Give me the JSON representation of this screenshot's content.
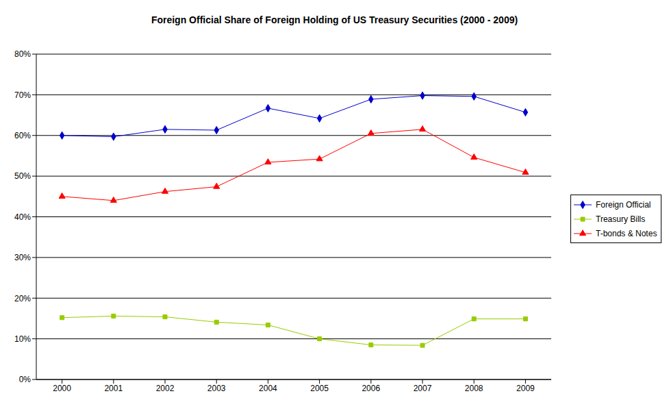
{
  "chart_data": {
    "type": "line",
    "title": "Foreign Official Share of Foreign Holding of US Treasury Securities (2000 - 2009)",
    "categories": [
      "2000",
      "2001",
      "2002",
      "2003",
      "2004",
      "2005",
      "2006",
      "2007",
      "2008",
      "2009"
    ],
    "series": [
      {
        "name": "Foreign Official",
        "color": "#0000CC",
        "marker": "diamond",
        "values": [
          60.0,
          59.7,
          61.5,
          61.3,
          66.7,
          64.2,
          68.9,
          69.8,
          69.6,
          65.7
        ]
      },
      {
        "name": "Treasury Bills",
        "color": "#99CC00",
        "marker": "square",
        "values": [
          15.2,
          15.6,
          15.4,
          14.1,
          13.4,
          10.0,
          8.5,
          8.4,
          14.9,
          14.9
        ]
      },
      {
        "name": "T-bonds & Notes",
        "color": "#FF0000",
        "marker": "triangle",
        "values": [
          45.0,
          44.0,
          46.2,
          47.4,
          53.4,
          54.2,
          60.5,
          61.5,
          54.6,
          50.9
        ]
      }
    ],
    "ylim": [
      0,
      80
    ],
    "yticks": [
      {
        "value": 0,
        "label": "0%"
      },
      {
        "value": 10,
        "label": "10%"
      },
      {
        "value": 20,
        "label": "20%"
      },
      {
        "value": 30,
        "label": "30%"
      },
      {
        "value": 40,
        "label": "40%"
      },
      {
        "value": 50,
        "label": "50%"
      },
      {
        "value": 60,
        "label": "60%"
      },
      {
        "value": 70,
        "label": "70%"
      },
      {
        "value": 80,
        "label": "80%"
      }
    ],
    "grid": true,
    "legend": "right"
  }
}
